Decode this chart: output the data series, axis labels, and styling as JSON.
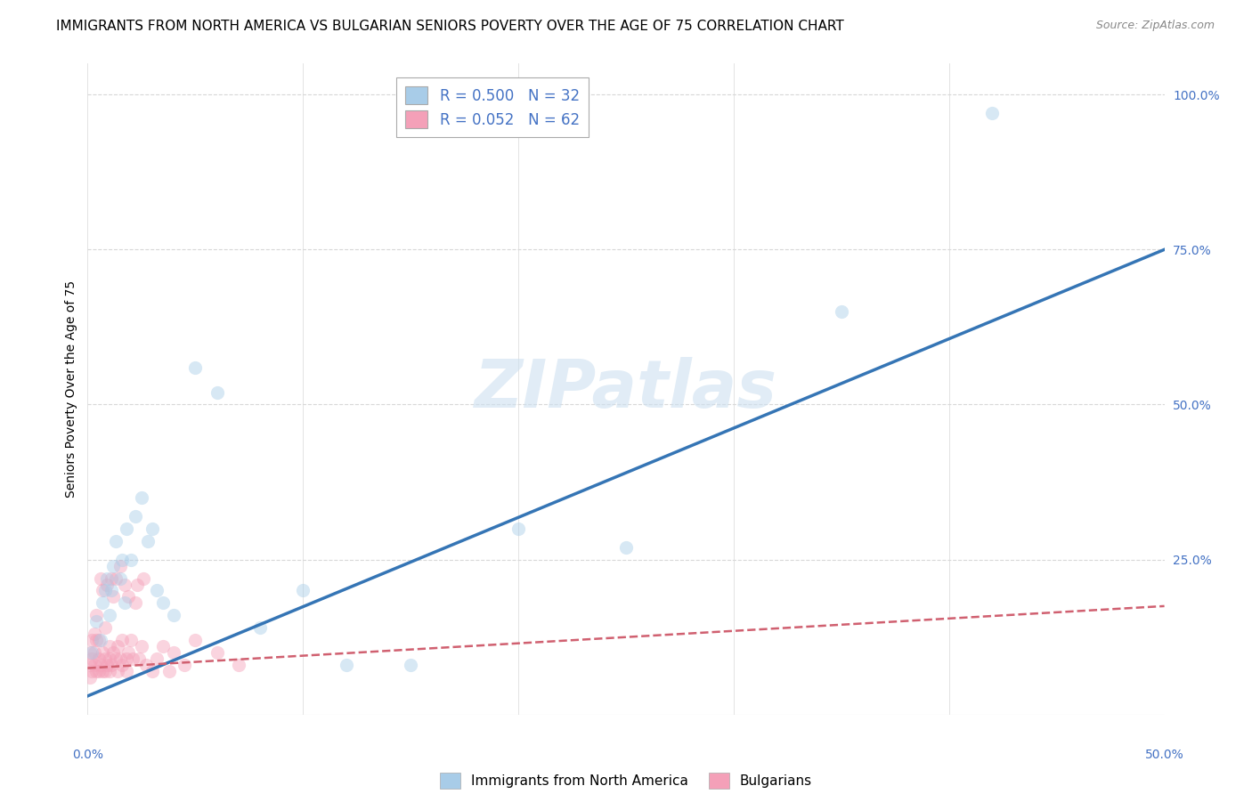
{
  "title": "IMMIGRANTS FROM NORTH AMERICA VS BULGARIAN SENIORS POVERTY OVER THE AGE OF 75 CORRELATION CHART",
  "source": "Source: ZipAtlas.com",
  "ylabel": "Seniors Poverty Over the Age of 75",
  "watermark": "ZIPatlas",
  "blue_R": 0.5,
  "blue_N": 32,
  "pink_R": 0.052,
  "pink_N": 62,
  "legend_label_blue": "Immigrants from North America",
  "legend_label_pink": "Bulgarians",
  "blue_color": "#a8cce8",
  "pink_color": "#f4a0b8",
  "blue_line_color": "#3575b5",
  "pink_line_color": "#d06070",
  "axis_label_color": "#4472C4",
  "ytick_labels": [
    "100.0%",
    "75.0%",
    "50.0%",
    "25.0%"
  ],
  "ytick_vals": [
    1.0,
    0.75,
    0.5,
    0.25
  ],
  "blue_line_x0": 0.0,
  "blue_line_y0": 0.03,
  "blue_line_x1": 0.5,
  "blue_line_y1": 0.75,
  "pink_line_x0": 0.0,
  "pink_line_y0": 0.075,
  "pink_line_x1": 0.5,
  "pink_line_y1": 0.175,
  "blue_scatter_x": [
    0.002,
    0.004,
    0.006,
    0.007,
    0.008,
    0.009,
    0.01,
    0.011,
    0.012,
    0.013,
    0.015,
    0.016,
    0.017,
    0.018,
    0.02,
    0.022,
    0.025,
    0.028,
    0.03,
    0.032,
    0.035,
    0.04,
    0.05,
    0.06,
    0.08,
    0.1,
    0.12,
    0.15,
    0.2,
    0.25,
    0.35,
    0.42
  ],
  "blue_scatter_y": [
    0.1,
    0.15,
    0.12,
    0.18,
    0.2,
    0.22,
    0.16,
    0.2,
    0.24,
    0.28,
    0.22,
    0.25,
    0.18,
    0.3,
    0.25,
    0.32,
    0.35,
    0.28,
    0.3,
    0.2,
    0.18,
    0.16,
    0.56,
    0.52,
    0.14,
    0.2,
    0.08,
    0.08,
    0.3,
    0.27,
    0.65,
    0.97
  ],
  "pink_scatter_x": [
    0.001,
    0.001,
    0.001,
    0.002,
    0.002,
    0.002,
    0.003,
    0.003,
    0.003,
    0.004,
    0.004,
    0.004,
    0.005,
    0.005,
    0.005,
    0.006,
    0.006,
    0.007,
    0.007,
    0.007,
    0.008,
    0.008,
    0.008,
    0.009,
    0.009,
    0.01,
    0.01,
    0.01,
    0.011,
    0.011,
    0.012,
    0.012,
    0.013,
    0.013,
    0.014,
    0.014,
    0.015,
    0.015,
    0.016,
    0.016,
    0.017,
    0.018,
    0.018,
    0.019,
    0.019,
    0.02,
    0.021,
    0.022,
    0.023,
    0.024,
    0.025,
    0.026,
    0.027,
    0.03,
    0.032,
    0.035,
    0.038,
    0.04,
    0.045,
    0.05,
    0.06,
    0.07
  ],
  "pink_scatter_y": [
    0.06,
    0.08,
    0.1,
    0.07,
    0.09,
    0.12,
    0.08,
    0.1,
    0.13,
    0.07,
    0.12,
    0.16,
    0.09,
    0.12,
    0.07,
    0.08,
    0.22,
    0.1,
    0.07,
    0.2,
    0.09,
    0.14,
    0.07,
    0.08,
    0.21,
    0.09,
    0.11,
    0.07,
    0.08,
    0.22,
    0.1,
    0.19,
    0.09,
    0.22,
    0.11,
    0.07,
    0.09,
    0.24,
    0.12,
    0.08,
    0.21,
    0.09,
    0.07,
    0.1,
    0.19,
    0.12,
    0.09,
    0.18,
    0.21,
    0.09,
    0.11,
    0.22,
    0.08,
    0.07,
    0.09,
    0.11,
    0.07,
    0.1,
    0.08,
    0.12,
    0.1,
    0.08
  ],
  "xlim": [
    0.0,
    0.5
  ],
  "ylim": [
    0.0,
    1.05
  ],
  "grid_color": "#d8d8d8",
  "background_color": "#ffffff",
  "title_fontsize": 11,
  "source_fontsize": 9,
  "axis_fontsize": 10,
  "legend_fontsize": 12,
  "scatter_size": 120,
  "scatter_alpha": 0.45
}
